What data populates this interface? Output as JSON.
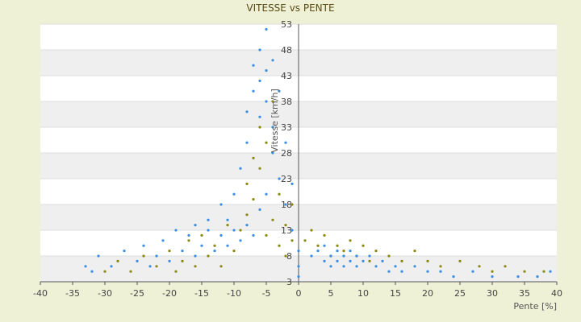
{
  "chart_data": {
    "type": "scatter",
    "title": "VITESSE vs PENTE",
    "xlabel": "Pente [%]",
    "ylabel": "Vitesse [km/h]",
    "xlim": [
      -40,
      40
    ],
    "ylim": [
      3,
      53
    ],
    "x_ticks": [
      -40,
      -35,
      -30,
      -25,
      -20,
      -15,
      -10,
      -5,
      0,
      5,
      10,
      15,
      20,
      25,
      30,
      35,
      40
    ],
    "y_ticks": [
      3,
      8,
      13,
      18,
      23,
      28,
      33,
      38,
      43,
      48,
      53
    ],
    "grid": "horizontal banded",
    "legend": "none",
    "colors": {
      "background": "#eef1d6",
      "plot": "#ffffff",
      "band": "#efefef",
      "series_blue": "#3b8ee0",
      "series_olive": "#8a8a12"
    },
    "series": [
      {
        "color": "#8a8a12",
        "points": [
          [
            -30,
            5
          ],
          [
            -28,
            7
          ],
          [
            -26,
            5
          ],
          [
            -24,
            8
          ],
          [
            -22,
            6
          ],
          [
            -20,
            9
          ],
          [
            -19,
            5
          ],
          [
            -18,
            7
          ],
          [
            -17,
            11
          ],
          [
            -16,
            6
          ],
          [
            -15,
            12
          ],
          [
            -14,
            8
          ],
          [
            -13,
            10
          ],
          [
            -12,
            6
          ],
          [
            -11,
            14
          ],
          [
            -10,
            9
          ],
          [
            -9,
            13
          ],
          [
            -8,
            16
          ],
          [
            -8,
            22
          ],
          [
            -7,
            19
          ],
          [
            -7,
            27
          ],
          [
            -6,
            25
          ],
          [
            -6,
            33
          ],
          [
            -5,
            12
          ],
          [
            -5,
            30
          ],
          [
            -4,
            15
          ],
          [
            -4,
            38
          ],
          [
            -3,
            10
          ],
          [
            -3,
            20
          ],
          [
            -2,
            8
          ],
          [
            -2,
            14
          ],
          [
            -1,
            11
          ],
          [
            -1,
            18
          ],
          [
            1,
            11
          ],
          [
            2,
            13
          ],
          [
            3,
            10
          ],
          [
            4,
            12
          ],
          [
            5,
            8
          ],
          [
            6,
            10
          ],
          [
            7,
            9
          ],
          [
            8,
            11
          ],
          [
            9,
            8
          ],
          [
            10,
            10
          ],
          [
            11,
            7
          ],
          [
            12,
            9
          ],
          [
            14,
            8
          ],
          [
            16,
            7
          ],
          [
            18,
            9
          ],
          [
            20,
            7
          ],
          [
            22,
            6
          ],
          [
            25,
            7
          ],
          [
            28,
            6
          ],
          [
            30,
            5
          ],
          [
            32,
            6
          ],
          [
            35,
            5
          ],
          [
            38,
            5
          ]
        ]
      },
      {
        "color": "#3b8ee0",
        "points": [
          [
            -33,
            6
          ],
          [
            -32,
            5
          ],
          [
            -31,
            8
          ],
          [
            -29,
            6
          ],
          [
            -27,
            9
          ],
          [
            -25,
            7
          ],
          [
            -24,
            10
          ],
          [
            -23,
            6
          ],
          [
            -22,
            8
          ],
          [
            -21,
            11
          ],
          [
            -20,
            7
          ],
          [
            -19,
            13
          ],
          [
            -18,
            9
          ],
          [
            -17,
            12
          ],
          [
            -16,
            14
          ],
          [
            -16,
            8
          ],
          [
            -15,
            10
          ],
          [
            -14,
            13
          ],
          [
            -14,
            15
          ],
          [
            -13,
            9
          ],
          [
            -12,
            12
          ],
          [
            -12,
            18
          ],
          [
            -11,
            10
          ],
          [
            -11,
            15
          ],
          [
            -10,
            13
          ],
          [
            -10,
            20
          ],
          [
            -9,
            11
          ],
          [
            -9,
            25
          ],
          [
            -8,
            14
          ],
          [
            -8,
            30
          ],
          [
            -8,
            36
          ],
          [
            -7,
            12
          ],
          [
            -7,
            40
          ],
          [
            -7,
            45
          ],
          [
            -6,
            17
          ],
          [
            -6,
            35
          ],
          [
            -6,
            42
          ],
          [
            -6,
            48
          ],
          [
            -5,
            20
          ],
          [
            -5,
            38
          ],
          [
            -5,
            44
          ],
          [
            -5,
            52
          ],
          [
            -4,
            28
          ],
          [
            -4,
            33
          ],
          [
            -4,
            46
          ],
          [
            -3,
            23
          ],
          [
            -3,
            40
          ],
          [
            -2,
            18
          ],
          [
            -2,
            30
          ],
          [
            -1,
            13
          ],
          [
            -1,
            22
          ],
          [
            0,
            4
          ],
          [
            0,
            6
          ],
          [
            0,
            9
          ],
          [
            2,
            8
          ],
          [
            3,
            9
          ],
          [
            4,
            7
          ],
          [
            4,
            10
          ],
          [
            5,
            8
          ],
          [
            5,
            6
          ],
          [
            6,
            9
          ],
          [
            6,
            7
          ],
          [
            7,
            8
          ],
          [
            7,
            6
          ],
          [
            8,
            9
          ],
          [
            8,
            7
          ],
          [
            9,
            8
          ],
          [
            9,
            6
          ],
          [
            10,
            7
          ],
          [
            11,
            8
          ],
          [
            12,
            6
          ],
          [
            13,
            7
          ],
          [
            14,
            5
          ],
          [
            15,
            6
          ],
          [
            16,
            5
          ],
          [
            18,
            6
          ],
          [
            20,
            5
          ],
          [
            22,
            5
          ],
          [
            24,
            4
          ],
          [
            27,
            5
          ],
          [
            30,
            4
          ],
          [
            34,
            4
          ],
          [
            37,
            4
          ],
          [
            39,
            5
          ]
        ]
      }
    ]
  }
}
